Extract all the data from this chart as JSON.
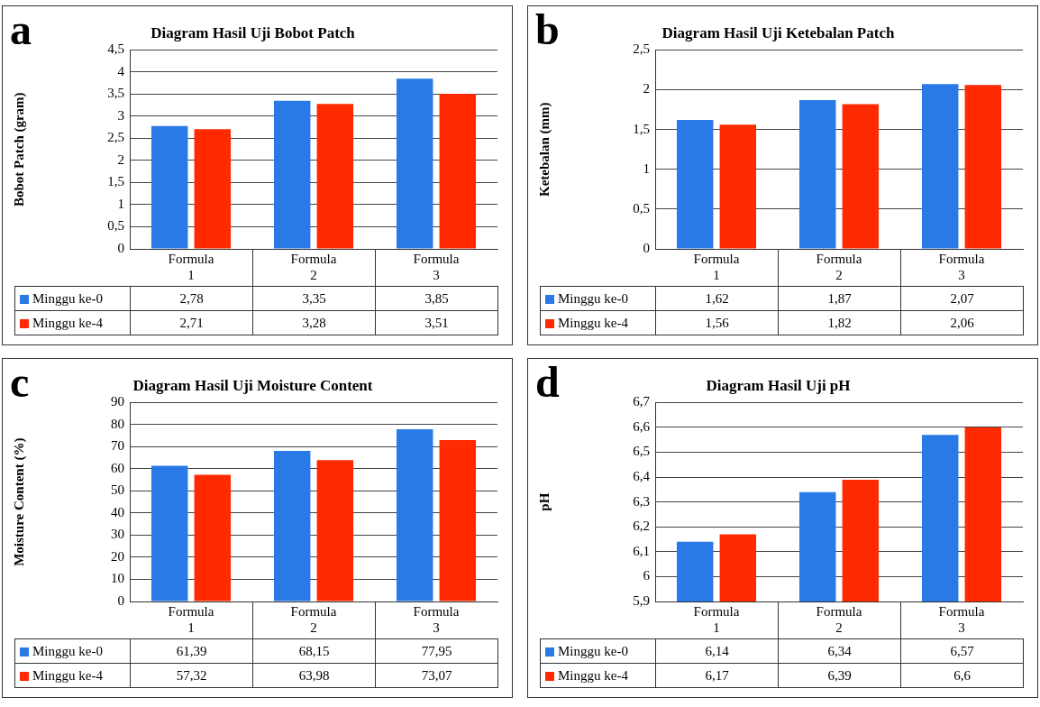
{
  "chart_data": [
    {
      "type": "bar",
      "title": "Diagram Hasil Uji Bobot Patch",
      "ylabel": "Bobot Patch (gram)",
      "annotations": [
        "a"
      ],
      "categories": [
        "Formula 1",
        "Formula 2",
        "Formula 3"
      ],
      "series": [
        {
          "name": "Minggu ke-0",
          "color": "#2979e6",
          "values": [
            2.78,
            3.35,
            3.85
          ],
          "value_labels": [
            "2,78",
            "3,35",
            "3,85"
          ]
        },
        {
          "name": "Minggu ke-4",
          "color": "#ff2a00",
          "values": [
            2.71,
            3.28,
            3.51
          ],
          "value_labels": [
            "2,71",
            "3,28",
            "3,51"
          ]
        }
      ],
      "ylim": [
        0,
        4.5
      ],
      "yticks": [
        0,
        {
          "value": 0.5,
          "label": "0,5"
        },
        1,
        {
          "value": 1.5,
          "label": "1,5"
        },
        2,
        {
          "value": 2.5,
          "label": "2,5"
        },
        3,
        {
          "value": 3.5,
          "label": "3,5"
        },
        4,
        {
          "value": 4.5,
          "label": "4,5"
        }
      ],
      "grid": "y",
      "legend": "bottom"
    },
    {
      "type": "bar",
      "title": "Diagram Hasil Uji Ketebalan Patch",
      "ylabel": "Ketebalan (mm)",
      "annotations": [
        "b"
      ],
      "categories": [
        "Formula 1",
        "Formula 2",
        "Formula 3"
      ],
      "series": [
        {
          "name": "Minggu ke-0",
          "color": "#2979e6",
          "values": [
            1.62,
            1.87,
            2.07
          ],
          "value_labels": [
            "1,62",
            "1,87",
            "2,07"
          ]
        },
        {
          "name": "Minggu ke-4",
          "color": "#ff2a00",
          "values": [
            1.56,
            1.82,
            2.06
          ],
          "value_labels": [
            "1,56",
            "1,82",
            "2,06"
          ]
        }
      ],
      "ylim": [
        0,
        2.5
      ],
      "yticks": [
        0,
        {
          "value": 0.5,
          "label": "0,5"
        },
        1,
        {
          "value": 1.5,
          "label": "1,5"
        },
        2,
        {
          "value": 2.5,
          "label": "2,5"
        }
      ],
      "grid": "y",
      "legend": "bottom"
    },
    {
      "type": "bar",
      "title": "Diagram Hasil Uji Moisture Content",
      "ylabel": "Moisture Content (%)",
      "annotations": [
        "c"
      ],
      "categories": [
        "Formula 1",
        "Formula 2",
        "Formula 3"
      ],
      "series": [
        {
          "name": "Minggu ke-0",
          "color": "#2979e6",
          "values": [
            61.39,
            68.15,
            77.95
          ],
          "value_labels": [
            "61,39",
            "68,15",
            "77,95"
          ]
        },
        {
          "name": "Minggu ke-4",
          "color": "#ff2a00",
          "values": [
            57.32,
            63.98,
            73.07
          ],
          "value_labels": [
            "57,32",
            "63,98",
            "73,07"
          ]
        }
      ],
      "ylim": [
        0,
        90
      ],
      "yticks": [
        0,
        10,
        20,
        30,
        40,
        50,
        60,
        70,
        80,
        90
      ],
      "grid": "y",
      "legend": "bottom"
    },
    {
      "type": "bar",
      "title": "Diagram Hasil Uji pH",
      "ylabel": "pH",
      "annotations": [
        "d"
      ],
      "categories": [
        "Formula 1",
        "Formula 2",
        "Formula 3"
      ],
      "series": [
        {
          "name": "Minggu ke-0",
          "color": "#2979e6",
          "values": [
            6.14,
            6.34,
            6.57
          ],
          "value_labels": [
            "6,14",
            "6,34",
            "6,57"
          ]
        },
        {
          "name": "Minggu ke-4",
          "color": "#ff2a00",
          "values": [
            6.17,
            6.39,
            6.6
          ],
          "value_labels": [
            "6,17",
            "6,39",
            "6,6"
          ]
        }
      ],
      "ylim": [
        5.9,
        6.7
      ],
      "yticks": [
        {
          "value": 5.9,
          "label": "5,9"
        },
        6,
        {
          "value": 6.1,
          "label": "6,1"
        },
        {
          "value": 6.2,
          "label": "6,2"
        },
        {
          "value": 6.3,
          "label": "6,3"
        },
        {
          "value": 6.4,
          "label": "6,4"
        },
        {
          "value": 6.5,
          "label": "6,5"
        },
        {
          "value": 6.6,
          "label": "6,6"
        },
        {
          "value": 6.7,
          "label": "6,7"
        }
      ],
      "grid": "y",
      "legend": "bottom"
    }
  ]
}
